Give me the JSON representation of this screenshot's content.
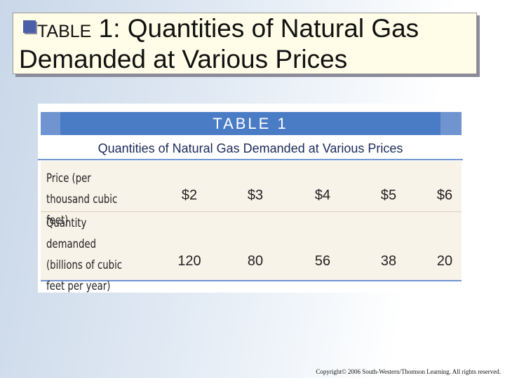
{
  "header": {
    "title_prefix": "TABLE",
    "title": "1: Quantities of Natural Gas Demanded at Various Prices"
  },
  "table": {
    "label": "TABLE 1",
    "caption": "Quantities of Natural Gas Demanded at Various Prices",
    "rows": [
      [
        "Price (per thousand cubic feet)",
        "$2",
        "$3",
        "$4",
        "$5",
        "$6"
      ],
      [
        "Quantity demanded (billions of cubic feet per year)",
        "120",
        "80",
        "56",
        "38",
        "20"
      ]
    ]
  },
  "footer": {
    "copyright": "Copyright© 2006 South-Western/Thomson Learning. All rights reserved."
  }
}
